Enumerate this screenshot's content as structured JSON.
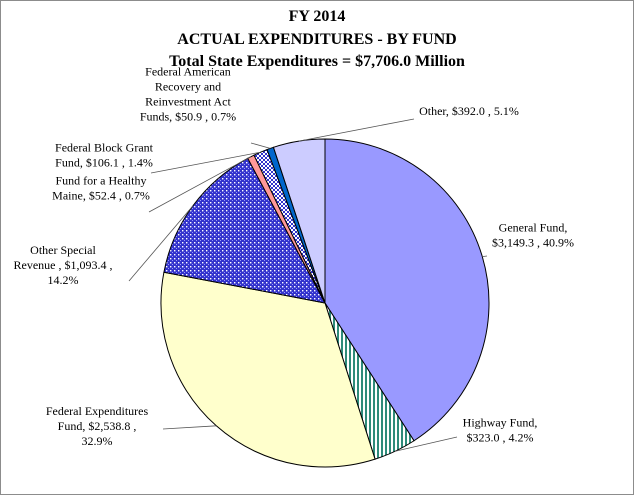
{
  "chart_data": {
    "type": "pie",
    "title": "FY 2014",
    "subtitle": "ACTUAL EXPENDITURES - BY FUND",
    "subtitle2": "Total State Expenditures = $7,706.0 Million",
    "start_angle_deg": 0,
    "direction": "clockwise",
    "slices": [
      {
        "label": "General Fund",
        "value": 3149.3,
        "percent": 40.9,
        "color": "#9999ff",
        "pattern": "solid",
        "label_lines": [
          "General Fund,",
          "$3,149.3 , 40.9%"
        ]
      },
      {
        "label": "Highway Fund",
        "value": 323.0,
        "percent": 4.2,
        "color": "#d9f2ef",
        "pattern": "vertical-stripes",
        "label_lines": [
          "Highway Fund,",
          "$323.0 , 4.2%"
        ]
      },
      {
        "label": "Federal Expenditures Fund",
        "value": 2538.8,
        "percent": 32.9,
        "color": "#ffffcc",
        "pattern": "solid",
        "label_lines": [
          "Federal Expenditures",
          "Fund, $2,538.8 ,",
          "32.9%"
        ]
      },
      {
        "label": "Other Special Revenue",
        "value": 1093.4,
        "percent": 14.2,
        "color": "#3333cc",
        "pattern": "dots",
        "label_lines": [
          "Other Special",
          "Revenue , $1,093.4 ,",
          "14.2%"
        ]
      },
      {
        "label": "Fund for a Healthy Maine",
        "value": 52.4,
        "percent": 0.7,
        "color": "#ff9999",
        "pattern": "solid",
        "label_lines": [
          "Fund for a Healthy",
          "Maine, $52.4 , 0.7%"
        ]
      },
      {
        "label": "Federal Block Grant Fund",
        "value": 106.1,
        "percent": 1.4,
        "color": "#ffffff",
        "pattern": "checker",
        "label_lines": [
          "Federal Block Grant",
          "Fund, $106.1 , 1.4%"
        ]
      },
      {
        "label": "Federal American Recovery and Reinvestment Act Funds",
        "value": 50.9,
        "percent": 0.7,
        "color": "#0066cc",
        "pattern": "solid",
        "label_lines": [
          "Federal American",
          "Recovery and",
          "Reinvestment Act",
          "Funds, $50.9 , 0.7%"
        ]
      },
      {
        "label": "Other",
        "value": 392.0,
        "percent": 5.1,
        "color": "#ccccff",
        "pattern": "solid",
        "label_lines": [
          "Other, $392.0 , 5.1%"
        ]
      }
    ]
  }
}
